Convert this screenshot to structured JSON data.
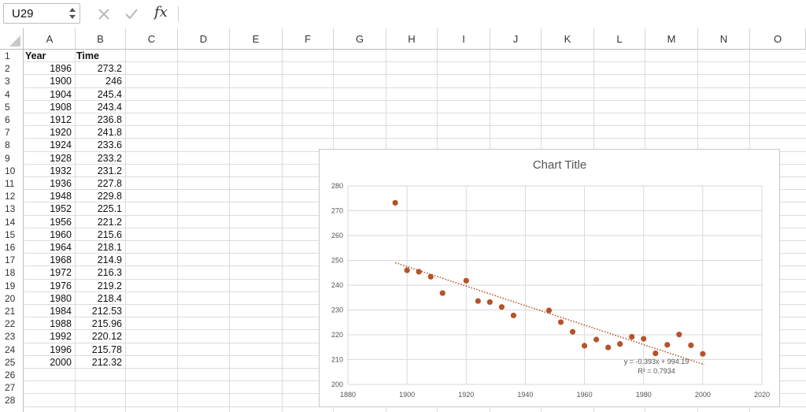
{
  "formula_bar": {
    "name_box": "U29",
    "cancel_icon": "x-icon",
    "enter_icon": "check-icon",
    "fx_label": "fx",
    "formula": ""
  },
  "columns": [
    "A",
    "B",
    "C",
    "D",
    "E",
    "F",
    "G",
    "H",
    "I",
    "J",
    "K",
    "L",
    "M",
    "N",
    "O"
  ],
  "rows": [
    "1",
    "2",
    "3",
    "4",
    "5",
    "6",
    "7",
    "8",
    "9",
    "10",
    "11",
    "12",
    "13",
    "14",
    "15",
    "16",
    "17",
    "18",
    "19",
    "20",
    "21",
    "22",
    "23",
    "24",
    "25",
    "26",
    "27",
    "28"
  ],
  "table": {
    "headers": [
      "Year",
      "Time"
    ],
    "data": [
      [
        "1896",
        "273.2"
      ],
      [
        "1900",
        "246"
      ],
      [
        "1904",
        "245.4"
      ],
      [
        "1908",
        "243.4"
      ],
      [
        "1912",
        "236.8"
      ],
      [
        "1920",
        "241.8"
      ],
      [
        "1924",
        "233.6"
      ],
      [
        "1928",
        "233.2"
      ],
      [
        "1932",
        "231.2"
      ],
      [
        "1936",
        "227.8"
      ],
      [
        "1948",
        "229.8"
      ],
      [
        "1952",
        "225.1"
      ],
      [
        "1956",
        "221.2"
      ],
      [
        "1960",
        "215.6"
      ],
      [
        "1964",
        "218.1"
      ],
      [
        "1968",
        "214.9"
      ],
      [
        "1972",
        "216.3"
      ],
      [
        "1976",
        "219.2"
      ],
      [
        "1980",
        "218.4"
      ],
      [
        "1984",
        "212.53"
      ],
      [
        "1988",
        "215.96"
      ],
      [
        "1992",
        "220.12"
      ],
      [
        "1996",
        "215.78"
      ],
      [
        "2000",
        "212.32"
      ]
    ]
  },
  "chart_data": {
    "type": "scatter",
    "title": "Chart Title",
    "xlabel": "",
    "ylabel": "",
    "xlim": [
      1880,
      2020
    ],
    "ylim": [
      200,
      280
    ],
    "x_ticks": [
      "1880",
      "1900",
      "1920",
      "1940",
      "1960",
      "1980",
      "2000",
      "2020"
    ],
    "y_ticks": [
      "200",
      "210",
      "220",
      "230",
      "240",
      "250",
      "260",
      "270",
      "280"
    ],
    "grid": true,
    "marker_color": "#b5532a",
    "trendline_color": "#b5532a",
    "series": [
      {
        "x": [
          1896,
          1900,
          1904,
          1908,
          1912,
          1920,
          1924,
          1928,
          1932,
          1936,
          1948,
          1952,
          1956,
          1960,
          1964,
          1968,
          1972,
          1976,
          1980,
          1984,
          1988,
          1992,
          1996,
          2000
        ],
        "y": [
          273.2,
          246,
          245.4,
          243.4,
          236.8,
          241.8,
          233.6,
          233.2,
          231.2,
          227.8,
          229.8,
          225.1,
          221.2,
          215.6,
          218.1,
          214.9,
          216.3,
          219.2,
          218.4,
          212.53,
          215.96,
          220.12,
          215.78,
          212.32
        ]
      }
    ],
    "trendline": {
      "slope": -0.393,
      "intercept": 994.19,
      "x_range": [
        1896,
        2000
      ],
      "equation": "y = -0.393x + 994.19",
      "r_squared": "R² = 0.7934"
    }
  }
}
